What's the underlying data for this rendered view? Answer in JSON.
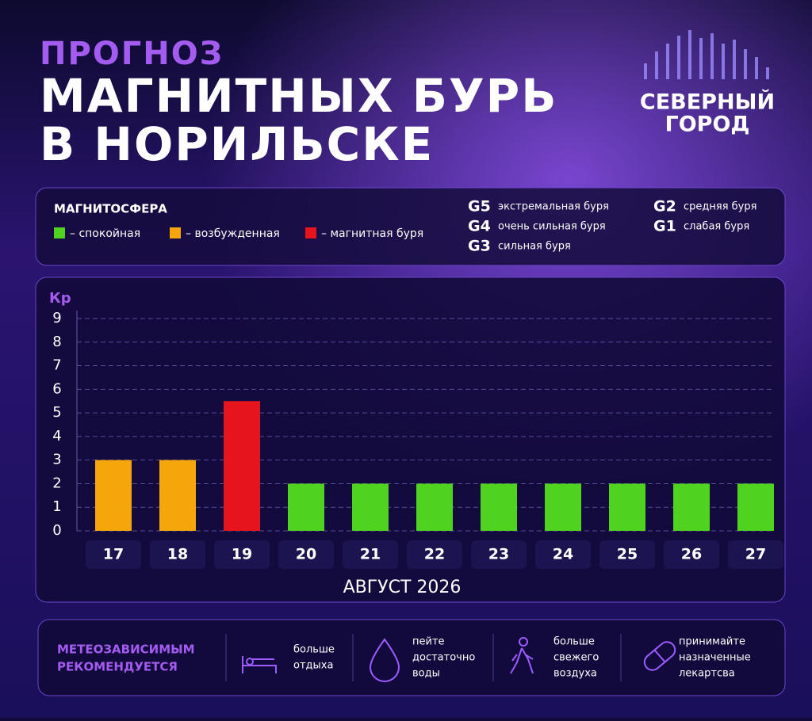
{
  "header": {
    "title": [
      "ПРОГНОЗ",
      "МАГНИТНЫХ БУРЬ",
      "В НОРИЛЬСКЕ"
    ],
    "logo": [
      "СЕВЕРНЫЙ",
      "ГОРОД"
    ]
  },
  "legend": {
    "title": "МАГНИТОСФЕРА",
    "items": [
      {
        "label": "– спокойная",
        "color": "#4fd31e"
      },
      {
        "label": "– возбужденная",
        "color": "#f5a60a"
      },
      {
        "label": "– магнитная буря",
        "color": "#e5141d"
      }
    ],
    "scale": [
      {
        "code": "G5",
        "text": "экстремальная буря"
      },
      {
        "code": "G4",
        "text": "очень сильная буря"
      },
      {
        "code": "G3",
        "text": "сильная буря"
      },
      {
        "code": "G2",
        "text": "средняя буря"
      },
      {
        "code": "G1",
        "text": "слабая буря"
      }
    ]
  },
  "chart_data": {
    "type": "bar",
    "y_label": "Кр",
    "x_label": "АВГУСТ 2026",
    "categories": [
      "17",
      "18",
      "19",
      "20",
      "21",
      "22",
      "23",
      "24",
      "25",
      "26",
      "27"
    ],
    "values": [
      3,
      3,
      5.5,
      2,
      2,
      2,
      2,
      2,
      2,
      2,
      2
    ],
    "colors": [
      "#f5a60a",
      "#f5a60a",
      "#e5141d",
      "#4fd31e",
      "#4fd31e",
      "#4fd31e",
      "#4fd31e",
      "#4fd31e",
      "#4fd31e",
      "#4fd31e",
      "#4fd31e"
    ],
    "ylim": [
      0,
      9
    ],
    "yticks": [
      0,
      1,
      2,
      3,
      4,
      5,
      6,
      7,
      8,
      9
    ],
    "grid": true
  },
  "tips": {
    "title": [
      "МЕТЕОЗАВИСИМЫМ",
      "РЕКОМЕНДУЕТСЯ"
    ],
    "items": [
      [
        "больше",
        "отдыха"
      ],
      [
        "пейте",
        "достаточно",
        "воды"
      ],
      [
        "больше",
        "свежего",
        "воздуха"
      ],
      [
        "принимайте",
        "назначенные",
        "лекартсва"
      ]
    ]
  }
}
